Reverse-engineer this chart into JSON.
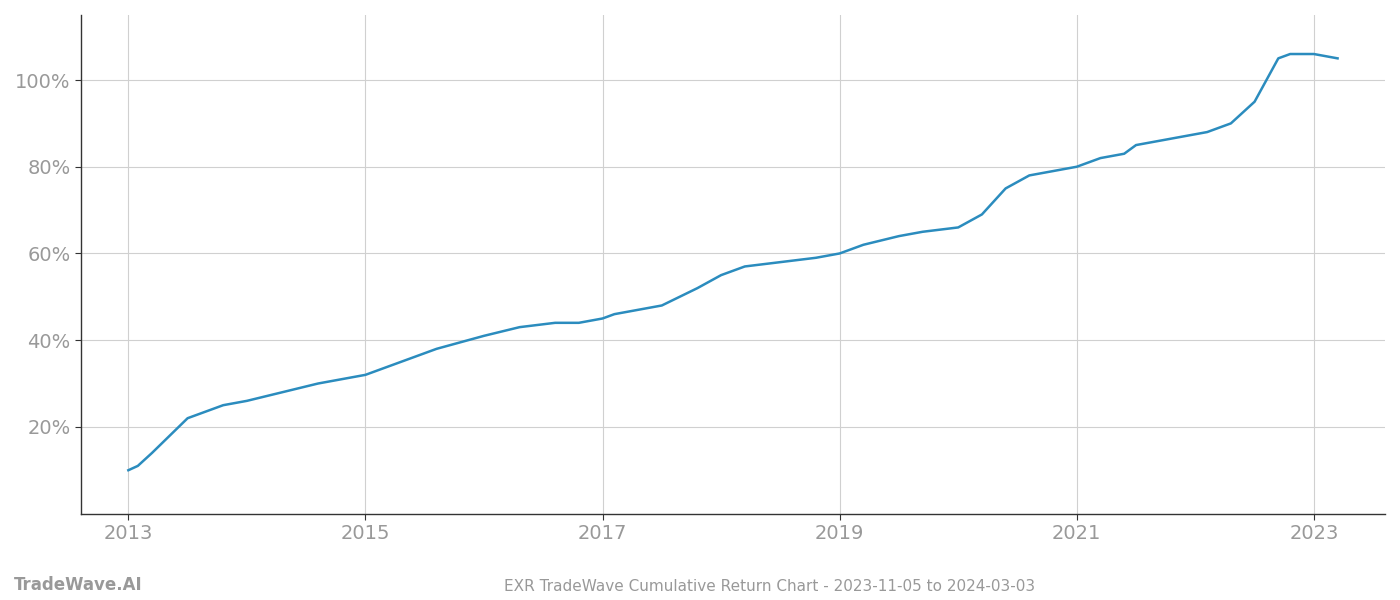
{
  "title": "EXR TradeWave Cumulative Return Chart - 2023-11-05 to 2024-03-03",
  "watermark": "TradeWave.AI",
  "line_color": "#2b8cbe",
  "line_width": 1.8,
  "background_color": "#ffffff",
  "grid_color": "#d0d0d0",
  "x_years": [
    2013.0,
    2013.08,
    2013.2,
    2013.5,
    2013.8,
    2014.0,
    2014.3,
    2014.6,
    2015.0,
    2015.3,
    2015.6,
    2016.0,
    2016.3,
    2016.6,
    2016.8,
    2017.0,
    2017.1,
    2017.3,
    2017.5,
    2017.8,
    2018.0,
    2018.2,
    2018.5,
    2018.8,
    2019.0,
    2019.1,
    2019.2,
    2019.5,
    2019.7,
    2020.0,
    2020.2,
    2020.4,
    2020.6,
    2020.8,
    2021.0,
    2021.1,
    2021.2,
    2021.4,
    2021.5,
    2021.7,
    2021.9,
    2022.1,
    2022.3,
    2022.5,
    2022.6,
    2022.7,
    2022.8,
    2023.0,
    2023.2
  ],
  "y_values": [
    10,
    11,
    14,
    22,
    25,
    26,
    28,
    30,
    32,
    35,
    38,
    41,
    43,
    44,
    44,
    45,
    46,
    47,
    48,
    52,
    55,
    57,
    58,
    59,
    60,
    61,
    62,
    64,
    65,
    66,
    69,
    75,
    78,
    79,
    80,
    81,
    82,
    83,
    85,
    86,
    87,
    88,
    90,
    95,
    100,
    105,
    106,
    106,
    105
  ],
  "xlim": [
    2012.6,
    2023.6
  ],
  "ylim": [
    0,
    115
  ],
  "yticks": [
    20,
    40,
    60,
    80,
    100
  ],
  "xticks": [
    2013,
    2015,
    2017,
    2019,
    2021,
    2023
  ],
  "tick_color": "#999999",
  "axis_color": "#333333",
  "tick_fontsize": 14,
  "title_fontsize": 11,
  "watermark_fontsize": 12
}
